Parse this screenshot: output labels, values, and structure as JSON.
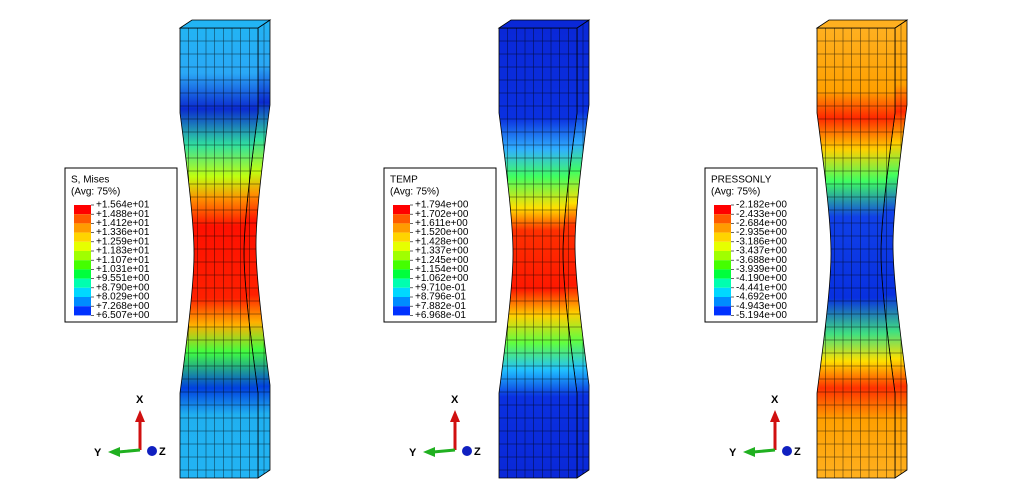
{
  "panels": [
    {
      "legend": {
        "title": "S, Mises",
        "subtitle": "(Avg: 75%)",
        "labels": [
          "+1.564e+01",
          "+1.488e+01",
          "+1.412e+01",
          "+1.336e+01",
          "+1.259e+01",
          "+1.183e+01",
          "+1.107e+01",
          "+1.031e+01",
          "+9.551e+00",
          "+8.790e+00",
          "+8.029e+00",
          "+7.268e+00",
          "+6.507e+00"
        ]
      },
      "triad": {
        "x": "X",
        "y": "Y",
        "z": "Z"
      }
    },
    {
      "legend": {
        "title": "TEMP",
        "subtitle": "(Avg: 75%)",
        "labels": [
          "+1.794e+00",
          "+1.702e+00",
          "+1.611e+00",
          "+1.520e+00",
          "+1.428e+00",
          "+1.337e+00",
          "+1.245e+00",
          "+1.154e+00",
          "+1.062e+00",
          "+9.710e-01",
          "+8.796e-01",
          "+7.882e-01",
          "+6.968e-01"
        ]
      },
      "triad": {
        "x": "X",
        "y": "Y",
        "z": "Z"
      }
    },
    {
      "legend": {
        "title": "PRESSONLY",
        "subtitle": "(Avg: 75%)",
        "labels": [
          "-2.182e+00",
          "-2.433e+00",
          "-2.684e+00",
          "-2.935e+00",
          "-3.186e+00",
          "-3.437e+00",
          "-3.688e+00",
          "-3.939e+00",
          "-4.190e+00",
          "-4.441e+00",
          "-4.692e+00",
          "-4.943e+00",
          "-5.194e+00"
        ]
      },
      "triad": {
        "x": "X",
        "y": "Y",
        "z": "Z"
      }
    }
  ]
}
